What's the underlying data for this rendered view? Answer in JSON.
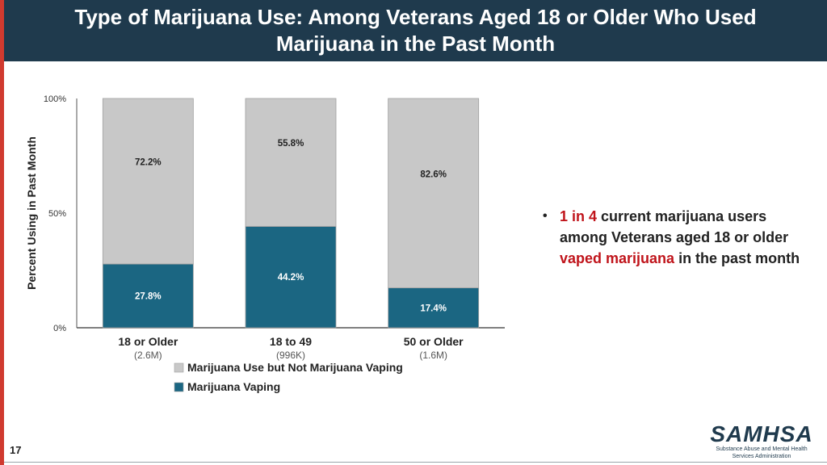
{
  "slide": {
    "title_line1": "Type of Marijuana Use: Among Veterans Aged 18 or Older Who Used",
    "title_line2": "Marijuana in the Past Month",
    "page_number": "17",
    "bullet": {
      "count": "1 in 4",
      "part1": " current marijuana users among Veterans aged 18 or older ",
      "highlight": "vaped marijuana",
      "part2": " in the past month"
    },
    "logo": {
      "name": "SAMHSA",
      "line1": "Substance Abuse and Mental Health",
      "line2": "Services Administration"
    },
    "colors": {
      "title_band": "#1f3a4d",
      "accent_red": "#c0141b",
      "left_bar": "#d03a2f"
    }
  },
  "chart_data": {
    "type": "bar",
    "stacked": true,
    "title": "",
    "xlabel": "",
    "ylabel": "Percent Using in Past Month",
    "ylim": [
      0,
      100
    ],
    "yticks": [
      "0%",
      "50%",
      "100%"
    ],
    "categories": [
      "18 or Older",
      "18 to 49",
      "50 or Older"
    ],
    "subcategories": [
      "(2.6M)",
      "(996K)",
      "(1.6M)"
    ],
    "series": [
      {
        "name": "Marijuana Vaping",
        "values": [
          27.8,
          44.2,
          17.4
        ],
        "labels": [
          "27.8%",
          "44.2%",
          "17.4%"
        ],
        "color": "#1b6682",
        "labelColor": "#ffffff"
      },
      {
        "name": "Marijuana Use but Not Marijuana Vaping",
        "values": [
          72.2,
          55.8,
          82.6
        ],
        "labels": [
          "72.2%",
          "55.8%",
          "82.6%"
        ],
        "color": "#c8c8c8",
        "labelColor": "#222222"
      }
    ],
    "legend_order": [
      "Marijuana Use but Not Marijuana Vaping",
      "Marijuana Vaping"
    ],
    "legend_position": "bottom"
  }
}
